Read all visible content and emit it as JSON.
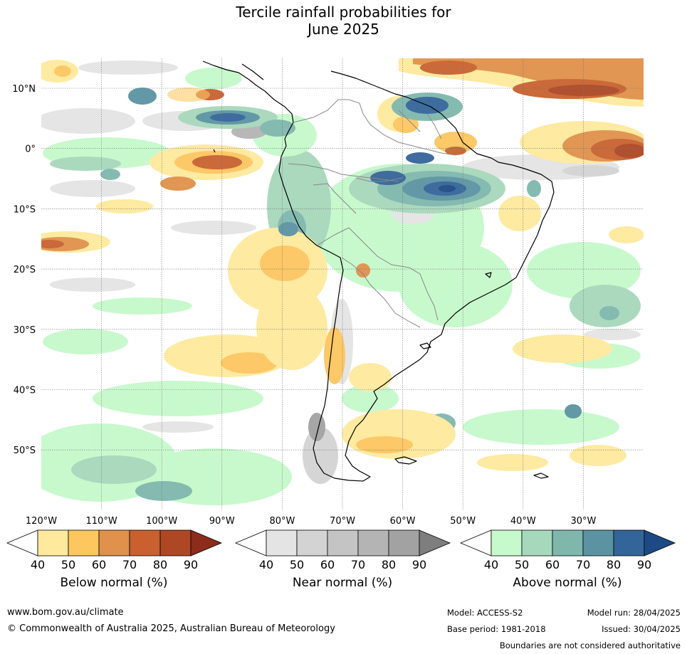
{
  "title_line1": "Tercile rainfall probabilities for",
  "title_line2": "June 2025",
  "map": {
    "lat_labels": [
      "10°N",
      "0°",
      "10°S",
      "20°S",
      "30°S",
      "40°S",
      "50°S"
    ],
    "lon_labels": [
      "120°W",
      "110°W",
      "100°W",
      "90°W",
      "80°W",
      "70°W",
      "60°W",
      "50°W",
      "40°W",
      "30°W"
    ]
  },
  "colorbars": [
    {
      "name": "Below normal (%)",
      "ticks": [
        "40",
        "50",
        "60",
        "70",
        "80",
        "90"
      ],
      "colors": [
        "#ffffff",
        "#fee99d",
        "#fdc65f",
        "#e0914b",
        "#c8612f",
        "#ad4724",
        "#8c2c1b"
      ]
    },
    {
      "name": "Near normal (%)",
      "ticks": [
        "40",
        "50",
        "60",
        "70",
        "80",
        "90"
      ],
      "colors": [
        "#ffffff",
        "#e4e4e4",
        "#d3d3d3",
        "#c4c4c4",
        "#b4b4b4",
        "#a2a2a2",
        "#7e7e7e"
      ]
    },
    {
      "name": "Above normal (%)",
      "ticks": [
        "40",
        "50",
        "60",
        "70",
        "80",
        "90"
      ],
      "colors": [
        "#ffffff",
        "#c6f9cb",
        "#a6d8bb",
        "#7fb7ad",
        "#5b93a2",
        "#346599",
        "#1d4a85"
      ]
    }
  ],
  "footer": {
    "url": "www.bom.gov.au/climate",
    "copyright": "© Commonwealth of Australia 2025, Australian Bureau of Meteorology",
    "model": "Model: ACCESS-S2",
    "base_period": "Base period: 1981-2018",
    "model_run": "Model run: 28/04/2025",
    "issued": "Issued: 30/04/2025",
    "disclaimer": "Boundaries are not considered authoritative"
  }
}
